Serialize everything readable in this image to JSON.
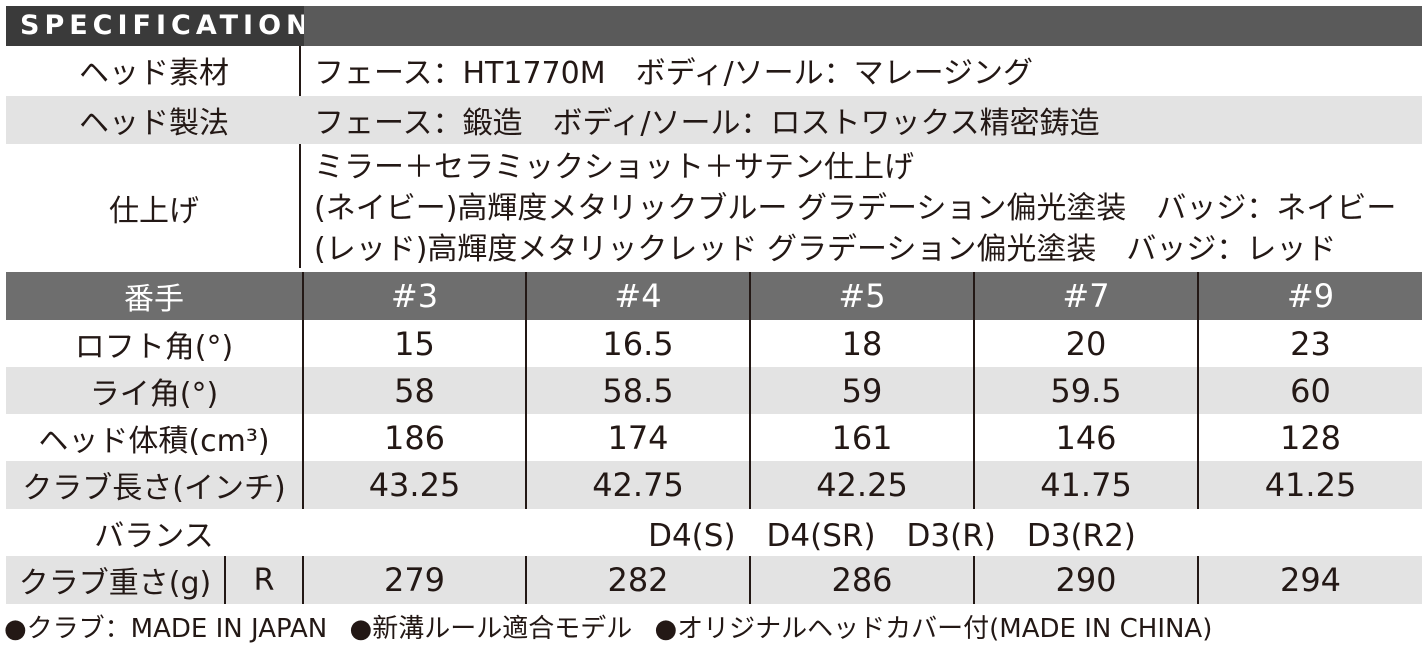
{
  "spec_title": "SPECIFICATION",
  "material": {
    "label": "ヘッド素材",
    "value": "フェース：HT1770M　ボディ/ソール：マレージング"
  },
  "method": {
    "label": "ヘッド製法",
    "value": "フェース：鍛造　ボディ/ソール：ロストワックス精密鋳造"
  },
  "finish": {
    "label": "仕上げ",
    "lines": [
      "ミラー＋セラミックショット＋サテン仕上げ",
      "(ネイビー)高輝度メタリックブルー グラデーション偏光塗装　バッジ：ネイビー",
      "(レッド)高輝度メタリックレッド グラデーション偏光塗装　バッジ：レッド"
    ]
  },
  "table": {
    "header": [
      "番手",
      "#3",
      "#4",
      "#5",
      "#7",
      "#9"
    ],
    "rows": [
      {
        "label": "ロフト角(°)",
        "values": [
          "15",
          "16.5",
          "18",
          "20",
          "23"
        ]
      },
      {
        "label": "ライ角(°)",
        "values": [
          "58",
          "58.5",
          "59",
          "59.5",
          "60"
        ]
      },
      {
        "label": "ヘッド体積(cm³)",
        "values": [
          "186",
          "174",
          "161",
          "146",
          "128"
        ]
      },
      {
        "label": "クラブ長さ(インチ)",
        "values": [
          "43.25",
          "42.75",
          "42.25",
          "41.75",
          "41.25"
        ]
      }
    ],
    "balance": {
      "label": "バランス",
      "value": "D4(S)　D4(SR)　D3(R)　D3(R2)"
    },
    "weight": {
      "label": "クラブ重さ(g)",
      "flex": "R",
      "values": [
        "279",
        "282",
        "286",
        "290",
        "294"
      ]
    }
  },
  "footer": [
    "●クラブ：MADE IN JAPAN",
    "●新溝ルール適合モデル",
    "●オリジナルヘッドカバー付(MADE IN CHINA)"
  ]
}
